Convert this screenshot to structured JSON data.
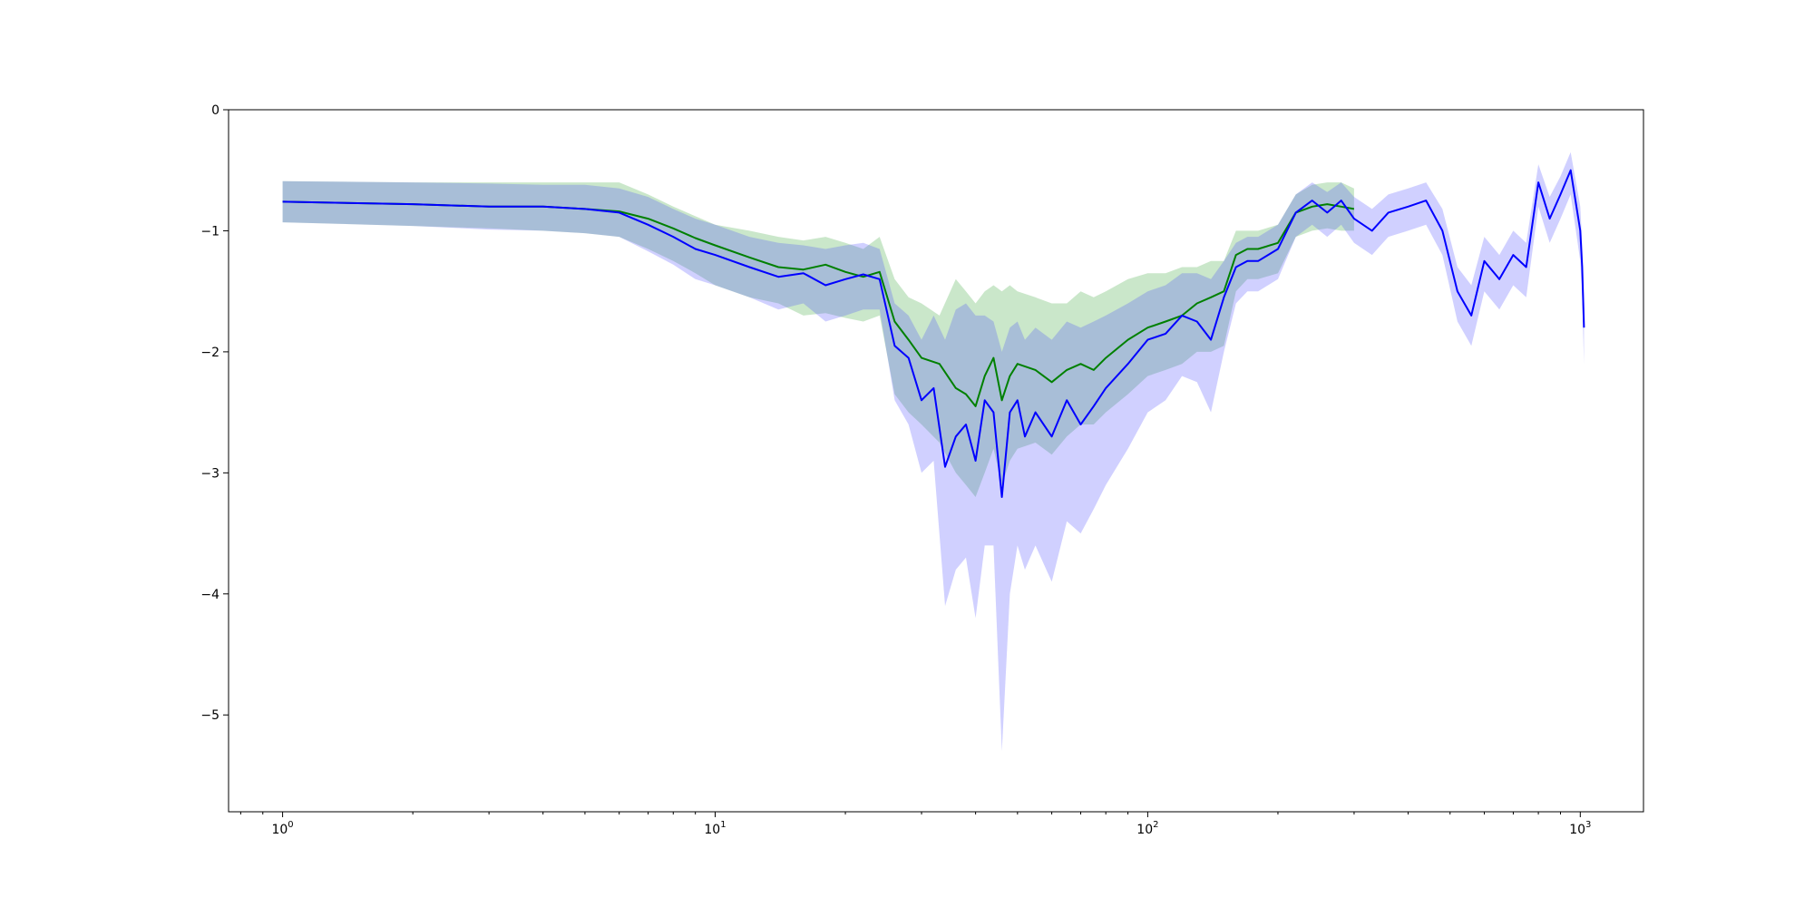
{
  "chart_data": {
    "type": "line",
    "title": "",
    "xlabel": "",
    "ylabel": "",
    "xscale": "log",
    "xlim": [
      0.75,
      1400
    ],
    "ylim": [
      -5.8,
      0
    ],
    "x_ticks": [
      {
        "value": 1,
        "base": "10",
        "exp": "0"
      },
      {
        "value": 10,
        "base": "10",
        "exp": "1"
      },
      {
        "value": 100,
        "base": "10",
        "exp": "2"
      },
      {
        "value": 1000,
        "base": "10",
        "exp": "3"
      }
    ],
    "y_ticks": [
      {
        "value": 0,
        "label": "0"
      },
      {
        "value": -1,
        "label": "−1"
      },
      {
        "value": -2,
        "label": "−2"
      },
      {
        "value": -3,
        "label": "−3"
      },
      {
        "value": -4,
        "label": "−4"
      },
      {
        "value": -5,
        "label": "−5"
      }
    ],
    "grid": false,
    "legend": "none",
    "series": [
      {
        "color": "#008000",
        "fill_color": "#2ca02c",
        "fill_opacity": 0.25,
        "x": [
          1,
          2,
          3,
          4,
          5,
          6,
          7,
          8,
          9,
          10,
          12,
          14,
          16,
          18,
          20,
          22,
          24,
          26,
          28,
          30,
          33,
          36,
          38,
          40,
          42,
          44,
          46,
          48,
          50,
          55,
          60,
          65,
          70,
          75,
          80,
          90,
          100,
          110,
          120,
          130,
          140,
          150,
          160,
          170,
          180,
          200,
          220,
          240,
          260,
          280,
          300
        ],
        "y": [
          -0.76,
          -0.78,
          -0.8,
          -0.8,
          -0.82,
          -0.84,
          -0.9,
          -0.98,
          -1.06,
          -1.12,
          -1.22,
          -1.3,
          -1.32,
          -1.28,
          -1.34,
          -1.38,
          -1.34,
          -1.75,
          -1.9,
          -2.05,
          -2.1,
          -2.3,
          -2.35,
          -2.45,
          -2.2,
          -2.05,
          -2.4,
          -2.2,
          -2.1,
          -2.15,
          -2.25,
          -2.15,
          -2.1,
          -2.15,
          -2.05,
          -1.9,
          -1.8,
          -1.75,
          -1.7,
          -1.6,
          -1.55,
          -1.5,
          -1.2,
          -1.15,
          -1.15,
          -1.1,
          -0.85,
          -0.8,
          -0.78,
          -0.8,
          -0.82
        ],
        "upper": [
          -0.59,
          -0.6,
          -0.6,
          -0.6,
          -0.6,
          -0.6,
          -0.7,
          -0.8,
          -0.88,
          -0.95,
          -1.0,
          -1.05,
          -1.08,
          -1.05,
          -1.1,
          -1.15,
          -1.05,
          -1.4,
          -1.55,
          -1.6,
          -1.7,
          -1.4,
          -1.5,
          -1.6,
          -1.5,
          -1.45,
          -1.5,
          -1.45,
          -1.5,
          -1.55,
          -1.6,
          -1.6,
          -1.5,
          -1.55,
          -1.5,
          -1.4,
          -1.35,
          -1.35,
          -1.3,
          -1.3,
          -1.25,
          -1.25,
          -1.0,
          -1.0,
          -1.0,
          -0.95,
          -0.7,
          -0.62,
          -0.6,
          -0.6,
          -0.65
        ],
        "lower": [
          -0.93,
          -0.96,
          -0.98,
          -1.0,
          -1.02,
          -1.05,
          -1.15,
          -1.25,
          -1.35,
          -1.45,
          -1.55,
          -1.6,
          -1.7,
          -1.68,
          -1.72,
          -1.75,
          -1.7,
          -2.35,
          -2.5,
          -2.6,
          -2.75,
          -3.0,
          -3.1,
          -3.2,
          -3.0,
          -2.8,
          -3.1,
          -2.9,
          -2.8,
          -2.75,
          -2.85,
          -2.7,
          -2.6,
          -2.6,
          -2.5,
          -2.35,
          -2.2,
          -2.15,
          -2.1,
          -2.0,
          -2.0,
          -1.95,
          -1.5,
          -1.4,
          -1.4,
          -1.35,
          -1.05,
          -1.0,
          -0.98,
          -1.0,
          -1.0
        ]
      },
      {
        "color": "#0000ff",
        "fill_color": "#4444ff",
        "fill_opacity": 0.25,
        "x": [
          1,
          2,
          3,
          4,
          5,
          6,
          7,
          8,
          9,
          10,
          12,
          14,
          16,
          18,
          20,
          22,
          24,
          26,
          28,
          30,
          32,
          34,
          36,
          38,
          40,
          42,
          44,
          46,
          48,
          50,
          52,
          55,
          60,
          65,
          70,
          75,
          80,
          90,
          100,
          110,
          120,
          130,
          140,
          150,
          160,
          170,
          180,
          200,
          220,
          240,
          260,
          280,
          300,
          330,
          360,
          400,
          440,
          480,
          520,
          560,
          600,
          650,
          700,
          750,
          800,
          850,
          900,
          950,
          1000,
          1010,
          1020
        ],
        "y": [
          -0.76,
          -0.78,
          -0.8,
          -0.8,
          -0.82,
          -0.85,
          -0.95,
          -1.05,
          -1.15,
          -1.2,
          -1.3,
          -1.38,
          -1.35,
          -1.45,
          -1.4,
          -1.36,
          -1.4,
          -1.95,
          -2.05,
          -2.4,
          -2.3,
          -2.95,
          -2.7,
          -2.6,
          -2.9,
          -2.4,
          -2.5,
          -3.2,
          -2.5,
          -2.4,
          -2.7,
          -2.5,
          -2.7,
          -2.4,
          -2.6,
          -2.45,
          -2.3,
          -2.1,
          -1.9,
          -1.85,
          -1.7,
          -1.75,
          -1.9,
          -1.55,
          -1.3,
          -1.25,
          -1.25,
          -1.15,
          -0.85,
          -0.75,
          -0.85,
          -0.75,
          -0.9,
          -1.0,
          -0.85,
          -0.8,
          -0.75,
          -1.0,
          -1.5,
          -1.7,
          -1.25,
          -1.4,
          -1.2,
          -1.3,
          -0.6,
          -0.9,
          -0.7,
          -0.5,
          -1.0,
          -1.3,
          -1.8
        ],
        "upper": [
          -0.59,
          -0.6,
          -0.61,
          -0.62,
          -0.62,
          -0.65,
          -0.72,
          -0.82,
          -0.9,
          -0.95,
          -1.05,
          -1.1,
          -1.12,
          -1.15,
          -1.12,
          -1.1,
          -1.15,
          -1.6,
          -1.7,
          -1.9,
          -1.7,
          -1.9,
          -1.65,
          -1.6,
          -1.7,
          -1.7,
          -1.75,
          -2.0,
          -1.8,
          -1.75,
          -1.9,
          -1.8,
          -1.9,
          -1.75,
          -1.8,
          -1.75,
          -1.7,
          -1.6,
          -1.5,
          -1.45,
          -1.35,
          -1.35,
          -1.4,
          -1.25,
          -1.1,
          -1.05,
          -1.05,
          -0.95,
          -0.7,
          -0.6,
          -0.68,
          -0.6,
          -0.72,
          -0.82,
          -0.7,
          -0.65,
          -0.6,
          -0.82,
          -1.3,
          -1.45,
          -1.05,
          -1.2,
          -1.0,
          -1.1,
          -0.45,
          -0.72,
          -0.55,
          -0.35,
          -0.8,
          -1.1,
          -1.6
        ],
        "lower": [
          -0.93,
          -0.96,
          -0.99,
          -1.0,
          -1.02,
          -1.05,
          -1.17,
          -1.28,
          -1.4,
          -1.45,
          -1.55,
          -1.65,
          -1.6,
          -1.75,
          -1.7,
          -1.65,
          -1.65,
          -2.4,
          -2.6,
          -3.0,
          -2.9,
          -4.1,
          -3.8,
          -3.7,
          -4.2,
          -3.6,
          -3.6,
          -5.3,
          -4.0,
          -3.6,
          -3.8,
          -3.6,
          -3.9,
          -3.4,
          -3.5,
          -3.3,
          -3.1,
          -2.8,
          -2.5,
          -2.4,
          -2.2,
          -2.25,
          -2.5,
          -2.0,
          -1.6,
          -1.5,
          -1.5,
          -1.4,
          -1.05,
          -0.95,
          -1.05,
          -0.95,
          -1.1,
          -1.2,
          -1.05,
          -1.0,
          -0.95,
          -1.2,
          -1.75,
          -1.95,
          -1.5,
          -1.65,
          -1.45,
          -1.55,
          -0.8,
          -1.1,
          -0.9,
          -0.7,
          -1.25,
          -1.55,
          -2.1
        ]
      }
    ]
  }
}
